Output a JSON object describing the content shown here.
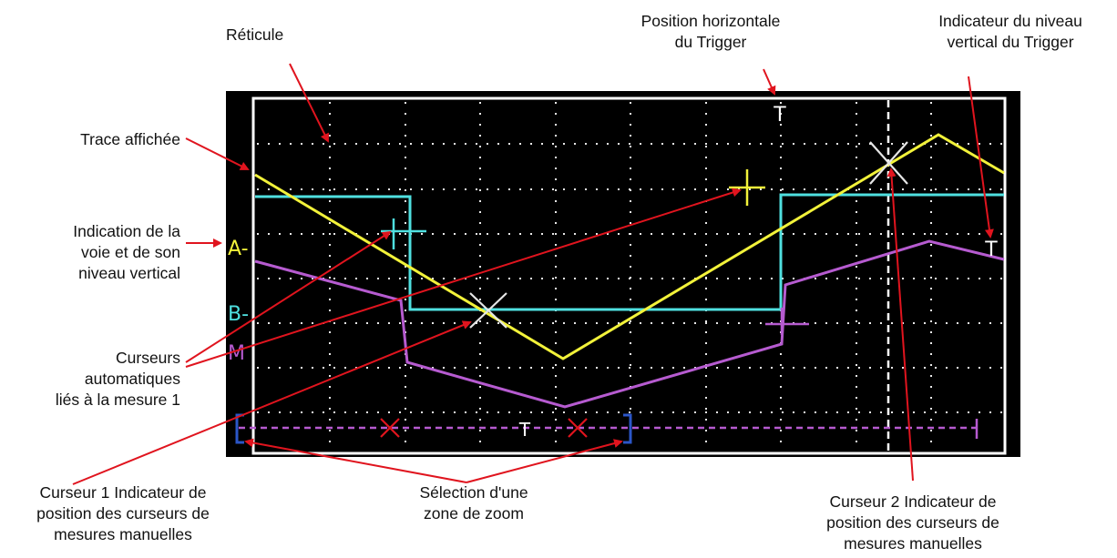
{
  "labels": {
    "reticule": "Réticule",
    "trigger_horizontal": "Position horizontale\ndu Trigger",
    "trigger_vertical": "Indicateur du niveau\nvertical du Trigger",
    "trace": "Trace affichée",
    "channel": "Indication de la\nvoie et de son\nniveau vertical",
    "auto_cursors": "Curseurs\nautomatiques\nliés à la mesure 1",
    "cursor1": "Curseur 1 Indicateur de\nposition des curseurs de\nmesures manuelles",
    "zoom": "Sélection d'une\nzone de zoom",
    "cursor2": "Curseur 2 Indicateur de\nposition des curseurs de\nmesures manuelles"
  },
  "screen": {
    "channel_a": "A-",
    "channel_b": "B-",
    "channel_m": "M",
    "trigger_marker": "T"
  },
  "colors": {
    "trace_a": "#f2f23a",
    "trace_b": "#4fe0e0",
    "trace_m": "#b65bd0",
    "grid": "#e8e8e8",
    "arrow": "#e0141e",
    "zoom_bracket": "#2b56c8",
    "screen_bg": "#000000"
  }
}
